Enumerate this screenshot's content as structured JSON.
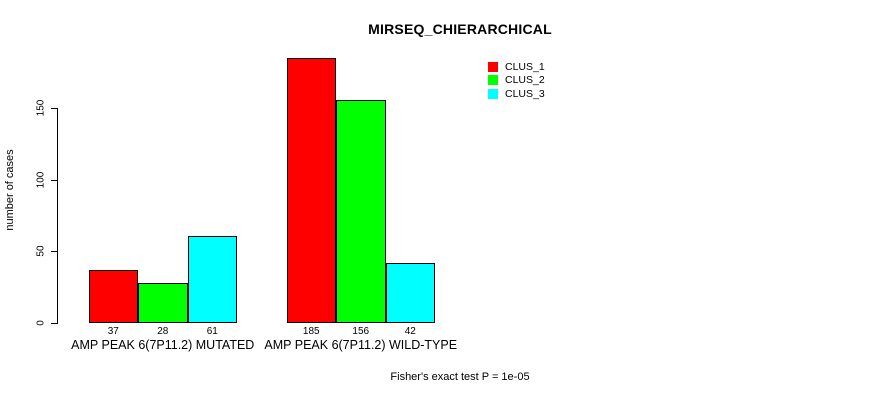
{
  "title": "MIRSEQ_CHIERARCHICAL",
  "subtitle": "Fisher's exact test P = 1e-05",
  "ylabel": "number of cases",
  "chart_data": {
    "type": "bar",
    "title": "MIRSEQ_CHIERARCHICAL",
    "xlabel": "",
    "ylabel": "number of cases",
    "ylim": [
      0,
      185
    ],
    "yticks": [
      0,
      50,
      100,
      150
    ],
    "grid": false,
    "legend_position": "top-right",
    "bar_border_color": "#000000",
    "background_color": "#ffffff",
    "categories": [
      "AMP PEAK  6(7P11.2) MUTATED",
      "AMP PEAK  6(7P11.2) WILD-TYPE"
    ],
    "series": [
      {
        "name": "CLUS_1",
        "color": "#FF0000",
        "values": [
          37,
          185
        ]
      },
      {
        "name": "CLUS_2",
        "color": "#00FF00",
        "values": [
          28,
          156
        ]
      },
      {
        "name": "CLUS_3",
        "color": "#00FFFF",
        "values": [
          61,
          42
        ]
      }
    ],
    "annotation": "Fisher's exact test P = 1e-05"
  }
}
